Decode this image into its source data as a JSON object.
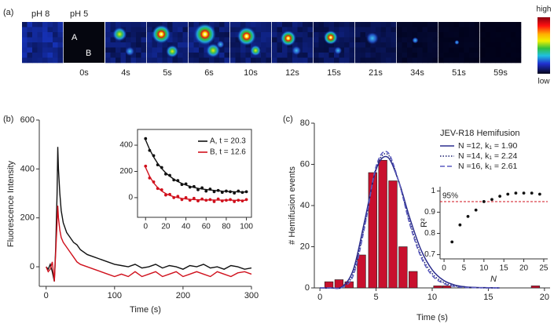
{
  "panel_labels": [
    "(a)",
    "(b)",
    "(c)"
  ],
  "image_strip": {
    "ph_labels": [
      "pH 8",
      "pH 5"
    ],
    "spot_labels": [
      "A",
      "B"
    ],
    "times": [
      "0s",
      "4s",
      "5s",
      "6s",
      "10s",
      "12s",
      "15s",
      "21s",
      "34s",
      "51s",
      "59s"
    ],
    "colorbar_labels": [
      "high",
      "low"
    ]
  },
  "chart_data": [
    {
      "type": "line",
      "xlabel": "Time (s)",
      "ylabel": "Fluorescence Intensity",
      "x": [
        0,
        3,
        6,
        9,
        12,
        14,
        16,
        17,
        18,
        20,
        22,
        25,
        30,
        35,
        40,
        45,
        50,
        60,
        70,
        80,
        90,
        100,
        110,
        120,
        130,
        140,
        150,
        160,
        170,
        180,
        190,
        200,
        210,
        220,
        230,
        240,
        250,
        260,
        270,
        280,
        290,
        300
      ],
      "series": [
        {
          "color": "#111111",
          "values": [
            0,
            -10,
            10,
            -20,
            -60,
            80,
            300,
            490,
            400,
            300,
            230,
            180,
            140,
            120,
            100,
            90,
            70,
            50,
            40,
            30,
            20,
            10,
            5,
            0,
            10,
            -5,
            0,
            10,
            -5,
            5,
            0,
            -10,
            5,
            0,
            10,
            -5,
            0,
            -10,
            5,
            0,
            -10,
            -5
          ]
        },
        {
          "color": "#d0101c",
          "values": [
            0,
            -20,
            -10,
            20,
            -60,
            60,
            180,
            250,
            200,
            150,
            120,
            100,
            80,
            60,
            40,
            20,
            10,
            0,
            -10,
            -20,
            -30,
            -40,
            -30,
            -40,
            -20,
            -40,
            -30,
            -20,
            -40,
            -30,
            -20,
            -40,
            -30,
            -20,
            -30,
            -40,
            -20,
            -30,
            -40,
            -25,
            -20,
            -30
          ]
        }
      ],
      "xlim": [
        -10,
        300
      ],
      "ylim": [
        -80,
        600
      ],
      "xticks": [
        0,
        100,
        200,
        300
      ],
      "yticks": [
        0,
        200,
        400,
        600
      ]
    },
    {
      "type": "scatter",
      "x": [
        0,
        4,
        8,
        12,
        16,
        20,
        24,
        28,
        32,
        36,
        40,
        44,
        48,
        52,
        56,
        60,
        64,
        68,
        72,
        76,
        80,
        84,
        88,
        92,
        96,
        100
      ],
      "series": [
        {
          "name": "A, t = 20.3",
          "color": "#111111",
          "values": [
            450,
            360,
            320,
            250,
            230,
            180,
            170,
            135,
            130,
            100,
            105,
            80,
            85,
            60,
            75,
            50,
            65,
            45,
            55,
            40,
            50,
            45,
            35,
            50,
            40,
            45
          ],
          "fit": [
            440,
            368,
            310,
            261,
            222,
            189,
            163,
            141,
            123,
            108,
            96,
            86,
            78,
            71,
            66,
            62,
            58,
            55,
            52,
            49,
            48,
            46,
            45,
            44,
            43,
            43
          ]
        },
        {
          "name": "B, t = 12.6",
          "color": "#d0101c",
          "values": [
            240,
            150,
            120,
            70,
            60,
            20,
            25,
            0,
            10,
            -15,
            0,
            -20,
            -5,
            -25,
            -10,
            -20,
            -15,
            -30,
            -10,
            -25,
            -20,
            -15,
            -30,
            -20,
            -25,
            -15
          ],
          "fit": [
            230,
            162,
            112,
            77,
            50,
            31,
            17,
            7,
            0,
            -6,
            -10,
            -13,
            -15,
            -16,
            -17,
            -17,
            -18,
            -18,
            -19,
            -19,
            -19,
            -19,
            -20,
            -20,
            -20,
            -20
          ]
        }
      ],
      "xlim": [
        -8,
        105
      ],
      "ylim": [
        -150,
        520
      ],
      "xticks": [
        0,
        20,
        40,
        60,
        80,
        100
      ],
      "yticks": [
        0,
        200,
        400
      ]
    },
    {
      "type": "bar",
      "xlabel": "Time (s)",
      "ylabel": "# Hemifusion events",
      "legend_title": "JEV-R18 Hemifusion",
      "x": [
        0.8,
        1.7,
        2.6,
        3.7,
        4.7,
        5.6,
        6.5,
        7.4,
        8.3,
        10.5,
        11.3,
        19.2
      ],
      "values": [
        3,
        4,
        3,
        16,
        56,
        62,
        52,
        20,
        8,
        1,
        1,
        1
      ],
      "color": "#c8102e",
      "bar_width": 0.75,
      "curves": [
        {
          "name": "N =12, k₁ = 1.90",
          "color": "#2b2d8e",
          "dash": "solid",
          "x": [
            0,
            1,
            2,
            3,
            4,
            5,
            6,
            7,
            8,
            9,
            10,
            11,
            12,
            13,
            14,
            15,
            16
          ],
          "values": [
            0,
            0,
            0.7,
            9.3,
            33,
            57.5,
            63.6,
            52,
            34,
            18.5,
            8.8,
            3.7,
            1.4,
            0.5,
            0.2,
            0.1,
            0
          ]
        },
        {
          "name": "N =14, k₁ = 2.24",
          "color": "#1b1f6e",
          "dash": "dotted",
          "x": [
            0,
            1,
            2,
            3,
            4,
            5,
            6,
            7,
            8,
            9,
            10,
            11,
            12,
            13,
            14,
            15,
            16
          ],
          "values": [
            0,
            0,
            0.4,
            7.5,
            31,
            58,
            65,
            52,
            32,
            16,
            7,
            2.7,
            1,
            0.3,
            0.1,
            0,
            0
          ]
        },
        {
          "name": "N =16, k₁ = 2.61",
          "color": "#5c5cc0",
          "dash": "dashed",
          "x": [
            0,
            1,
            2,
            3,
            4,
            5,
            6,
            7,
            8,
            9,
            10,
            11,
            12,
            13,
            14,
            15,
            16
          ],
          "values": [
            0,
            0,
            0.3,
            6.5,
            30,
            59,
            66,
            52,
            31,
            15,
            6,
            2.2,
            0.7,
            0.2,
            0.1,
            0,
            0
          ]
        }
      ],
      "xlim": [
        -0.5,
        20.5
      ],
      "ylim": [
        0,
        80
      ],
      "xticks": [
        0,
        5,
        10,
        15,
        20
      ],
      "yticks": [
        0,
        20,
        40,
        60,
        80
      ]
    },
    {
      "type": "scatter",
      "xlabel": "N",
      "ylabel": "R²",
      "x": [
        2,
        4,
        6,
        8,
        10,
        12,
        14,
        16,
        18,
        20,
        22,
        24
      ],
      "values": [
        0.76,
        0.84,
        0.88,
        0.91,
        0.95,
        0.96,
        0.975,
        0.985,
        0.99,
        0.99,
        0.99,
        0.985
      ],
      "color": "#111111",
      "reference": {
        "value": 0.95,
        "label": "95%",
        "color": "#d0101c"
      },
      "xlim": [
        -1,
        26
      ],
      "ylim": [
        0.68,
        1.02
      ],
      "xticks": [
        0,
        5,
        10,
        15,
        20,
        25
      ],
      "yticks": [
        0.7,
        0.8,
        0.9,
        1
      ]
    }
  ]
}
